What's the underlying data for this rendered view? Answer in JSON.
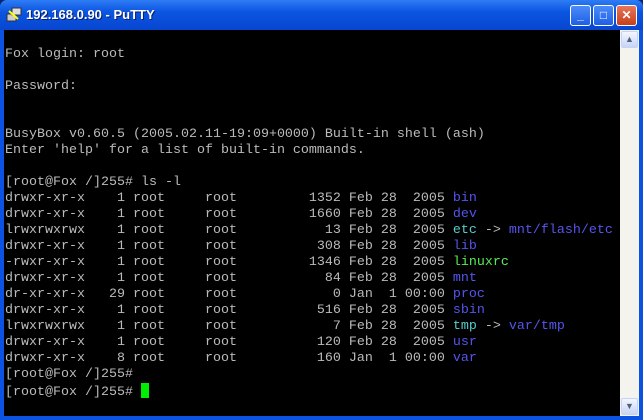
{
  "window": {
    "title": "192.168.0.90 - PuTTY",
    "icon": "putty-icon",
    "buttons": {
      "minimize": "_",
      "maximize": "□",
      "close": "✕"
    }
  },
  "colors": {
    "text": "#bbbbbb",
    "dir": "#5555ee",
    "link": "#55cccc",
    "exec": "#55ee55",
    "cursor": "#00ee00"
  },
  "terminal": {
    "lines": [
      [
        {
          "t": "Fox login: root"
        }
      ],
      [],
      [
        {
          "t": "Password:"
        }
      ],
      [],
      [],
      [
        {
          "t": "BusyBox v0.60.5 (2005.02.11-19:09+0000) Built-in shell (ash)"
        }
      ],
      [
        {
          "t": "Enter 'help' for a list of built-in commands."
        }
      ],
      [],
      [
        {
          "t": "[root@Fox /]255# ls -l"
        }
      ],
      [
        {
          "t": "drwxr-xr-x    1 root     root         1352 Feb 28  2005 "
        },
        {
          "t": "bin",
          "c": "dir"
        }
      ],
      [
        {
          "t": "drwxr-xr-x    1 root     root         1660 Feb 28  2005 "
        },
        {
          "t": "dev",
          "c": "dir"
        }
      ],
      [
        {
          "t": "lrwxrwxrwx    1 root     root           13 Feb 28  2005 "
        },
        {
          "t": "etc",
          "c": "link"
        },
        {
          "t": " -> "
        },
        {
          "t": "mnt/flash/etc",
          "c": "dir"
        }
      ],
      [
        {
          "t": "drwxr-xr-x    1 root     root          308 Feb 28  2005 "
        },
        {
          "t": "lib",
          "c": "dir"
        }
      ],
      [
        {
          "t": "-rwxr-xr-x    1 root     root         1346 Feb 28  2005 "
        },
        {
          "t": "linuxrc",
          "c": "exec"
        }
      ],
      [
        {
          "t": "drwxr-xr-x    1 root     root           84 Feb 28  2005 "
        },
        {
          "t": "mnt",
          "c": "dir"
        }
      ],
      [
        {
          "t": "dr-xr-xr-x   29 root     root            0 Jan  1 00:00 "
        },
        {
          "t": "proc",
          "c": "dir"
        }
      ],
      [
        {
          "t": "drwxr-xr-x    1 root     root          516 Feb 28  2005 "
        },
        {
          "t": "sbin",
          "c": "dir"
        }
      ],
      [
        {
          "t": "lrwxrwxrwx    1 root     root            7 Feb 28  2005 "
        },
        {
          "t": "tmp",
          "c": "link"
        },
        {
          "t": " -> "
        },
        {
          "t": "var/tmp",
          "c": "dir"
        }
      ],
      [
        {
          "t": "drwxr-xr-x    1 root     root          120 Feb 28  2005 "
        },
        {
          "t": "usr",
          "c": "dir"
        }
      ],
      [
        {
          "t": "drwxr-xr-x    8 root     root          160 Jan  1 00:00 "
        },
        {
          "t": "var",
          "c": "dir"
        }
      ],
      [
        {
          "t": "[root@Fox /]255#"
        }
      ],
      [
        {
          "t": "[root@Fox /]255# "
        },
        {
          "cursor": true
        }
      ]
    ]
  }
}
